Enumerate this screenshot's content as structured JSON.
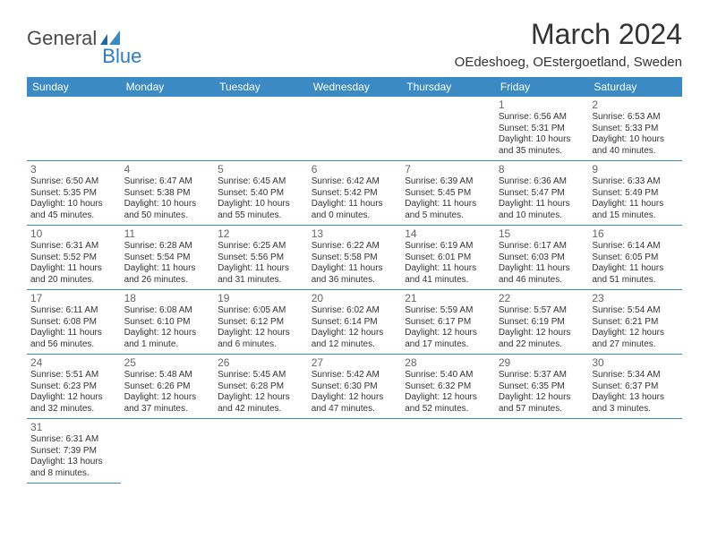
{
  "logo": {
    "text1": "General",
    "text2": "Blue"
  },
  "title": "March 2024",
  "subtitle": "OEdeshoeg, OEstergoetland, Sweden",
  "weekday_header_bg": "#3b8ac4",
  "weekday_header_fg": "#ffffff",
  "border_color": "#3b8ac4",
  "weekdays": [
    "Sunday",
    "Monday",
    "Tuesday",
    "Wednesday",
    "Thursday",
    "Friday",
    "Saturday"
  ],
  "days": [
    null,
    null,
    null,
    null,
    null,
    {
      "num": "1",
      "sunrise": "Sunrise: 6:56 AM",
      "sunset": "Sunset: 5:31 PM",
      "daylight": "Daylight: 10 hours and 35 minutes."
    },
    {
      "num": "2",
      "sunrise": "Sunrise: 6:53 AM",
      "sunset": "Sunset: 5:33 PM",
      "daylight": "Daylight: 10 hours and 40 minutes."
    },
    {
      "num": "3",
      "sunrise": "Sunrise: 6:50 AM",
      "sunset": "Sunset: 5:35 PM",
      "daylight": "Daylight: 10 hours and 45 minutes."
    },
    {
      "num": "4",
      "sunrise": "Sunrise: 6:47 AM",
      "sunset": "Sunset: 5:38 PM",
      "daylight": "Daylight: 10 hours and 50 minutes."
    },
    {
      "num": "5",
      "sunrise": "Sunrise: 6:45 AM",
      "sunset": "Sunset: 5:40 PM",
      "daylight": "Daylight: 10 hours and 55 minutes."
    },
    {
      "num": "6",
      "sunrise": "Sunrise: 6:42 AM",
      "sunset": "Sunset: 5:42 PM",
      "daylight": "Daylight: 11 hours and 0 minutes."
    },
    {
      "num": "7",
      "sunrise": "Sunrise: 6:39 AM",
      "sunset": "Sunset: 5:45 PM",
      "daylight": "Daylight: 11 hours and 5 minutes."
    },
    {
      "num": "8",
      "sunrise": "Sunrise: 6:36 AM",
      "sunset": "Sunset: 5:47 PM",
      "daylight": "Daylight: 11 hours and 10 minutes."
    },
    {
      "num": "9",
      "sunrise": "Sunrise: 6:33 AM",
      "sunset": "Sunset: 5:49 PM",
      "daylight": "Daylight: 11 hours and 15 minutes."
    },
    {
      "num": "10",
      "sunrise": "Sunrise: 6:31 AM",
      "sunset": "Sunset: 5:52 PM",
      "daylight": "Daylight: 11 hours and 20 minutes."
    },
    {
      "num": "11",
      "sunrise": "Sunrise: 6:28 AM",
      "sunset": "Sunset: 5:54 PM",
      "daylight": "Daylight: 11 hours and 26 minutes."
    },
    {
      "num": "12",
      "sunrise": "Sunrise: 6:25 AM",
      "sunset": "Sunset: 5:56 PM",
      "daylight": "Daylight: 11 hours and 31 minutes."
    },
    {
      "num": "13",
      "sunrise": "Sunrise: 6:22 AM",
      "sunset": "Sunset: 5:58 PM",
      "daylight": "Daylight: 11 hours and 36 minutes."
    },
    {
      "num": "14",
      "sunrise": "Sunrise: 6:19 AM",
      "sunset": "Sunset: 6:01 PM",
      "daylight": "Daylight: 11 hours and 41 minutes."
    },
    {
      "num": "15",
      "sunrise": "Sunrise: 6:17 AM",
      "sunset": "Sunset: 6:03 PM",
      "daylight": "Daylight: 11 hours and 46 minutes."
    },
    {
      "num": "16",
      "sunrise": "Sunrise: 6:14 AM",
      "sunset": "Sunset: 6:05 PM",
      "daylight": "Daylight: 11 hours and 51 minutes."
    },
    {
      "num": "17",
      "sunrise": "Sunrise: 6:11 AM",
      "sunset": "Sunset: 6:08 PM",
      "daylight": "Daylight: 11 hours and 56 minutes."
    },
    {
      "num": "18",
      "sunrise": "Sunrise: 6:08 AM",
      "sunset": "Sunset: 6:10 PM",
      "daylight": "Daylight: 12 hours and 1 minute."
    },
    {
      "num": "19",
      "sunrise": "Sunrise: 6:05 AM",
      "sunset": "Sunset: 6:12 PM",
      "daylight": "Daylight: 12 hours and 6 minutes."
    },
    {
      "num": "20",
      "sunrise": "Sunrise: 6:02 AM",
      "sunset": "Sunset: 6:14 PM",
      "daylight": "Daylight: 12 hours and 12 minutes."
    },
    {
      "num": "21",
      "sunrise": "Sunrise: 5:59 AM",
      "sunset": "Sunset: 6:17 PM",
      "daylight": "Daylight: 12 hours and 17 minutes."
    },
    {
      "num": "22",
      "sunrise": "Sunrise: 5:57 AM",
      "sunset": "Sunset: 6:19 PM",
      "daylight": "Daylight: 12 hours and 22 minutes."
    },
    {
      "num": "23",
      "sunrise": "Sunrise: 5:54 AM",
      "sunset": "Sunset: 6:21 PM",
      "daylight": "Daylight: 12 hours and 27 minutes."
    },
    {
      "num": "24",
      "sunrise": "Sunrise: 5:51 AM",
      "sunset": "Sunset: 6:23 PM",
      "daylight": "Daylight: 12 hours and 32 minutes."
    },
    {
      "num": "25",
      "sunrise": "Sunrise: 5:48 AM",
      "sunset": "Sunset: 6:26 PM",
      "daylight": "Daylight: 12 hours and 37 minutes."
    },
    {
      "num": "26",
      "sunrise": "Sunrise: 5:45 AM",
      "sunset": "Sunset: 6:28 PM",
      "daylight": "Daylight: 12 hours and 42 minutes."
    },
    {
      "num": "27",
      "sunrise": "Sunrise: 5:42 AM",
      "sunset": "Sunset: 6:30 PM",
      "daylight": "Daylight: 12 hours and 47 minutes."
    },
    {
      "num": "28",
      "sunrise": "Sunrise: 5:40 AM",
      "sunset": "Sunset: 6:32 PM",
      "daylight": "Daylight: 12 hours and 52 minutes."
    },
    {
      "num": "29",
      "sunrise": "Sunrise: 5:37 AM",
      "sunset": "Sunset: 6:35 PM",
      "daylight": "Daylight: 12 hours and 57 minutes."
    },
    {
      "num": "30",
      "sunrise": "Sunrise: 5:34 AM",
      "sunset": "Sunset: 6:37 PM",
      "daylight": "Daylight: 13 hours and 3 minutes."
    },
    {
      "num": "31",
      "sunrise": "Sunrise: 6:31 AM",
      "sunset": "Sunset: 7:39 PM",
      "daylight": "Daylight: 13 hours and 8 minutes."
    },
    null,
    null,
    null,
    null,
    null,
    null
  ]
}
